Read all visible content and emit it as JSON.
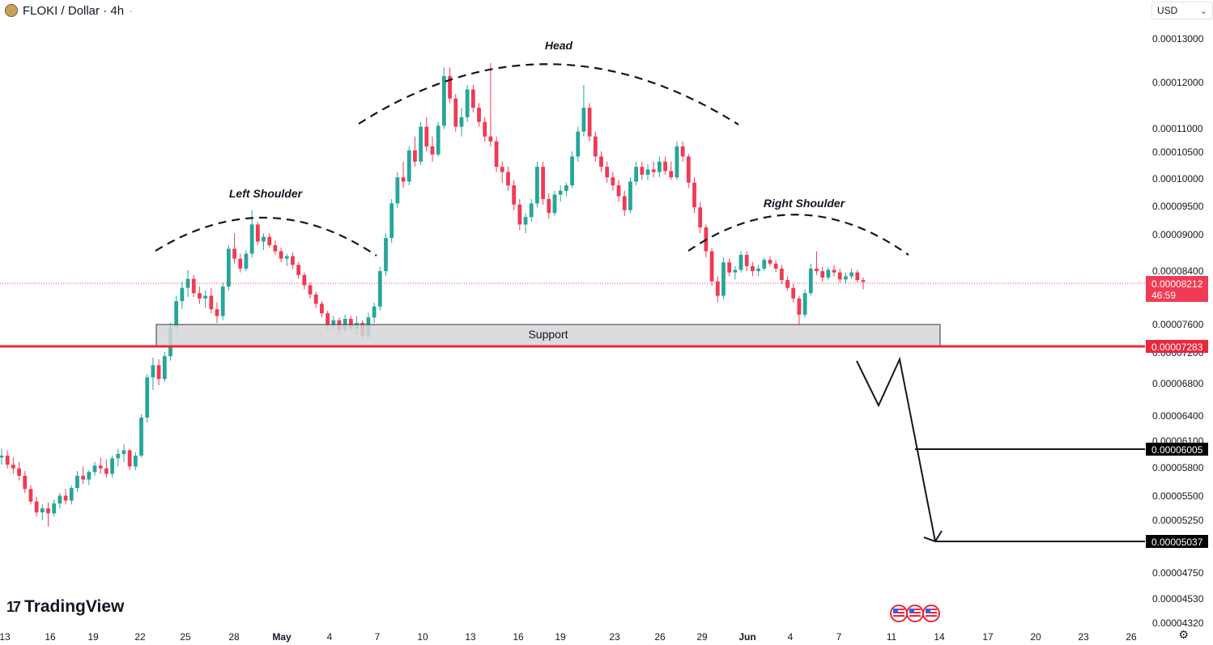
{
  "header": {
    "symbol_title": "FLOKI / Dollar · 4h",
    "dot": "·"
  },
  "currency_select": {
    "value": "USD",
    "chevron": "⌄"
  },
  "logo": {
    "text": "TradingView",
    "mark": "17"
  },
  "colors": {
    "up": "#26a69a",
    "down": "#ef3b55",
    "line_red": "#e8283c",
    "support_fill": "#d6d6d9"
  },
  "chart_data": {
    "type": "candlestick",
    "y_axis": {
      "ticks": [
        "0.00013000",
        "0.00012000",
        "0.00011000",
        "0.00010500",
        "0.00010000",
        "0.00009500",
        "0.00009000",
        "0.00008400",
        "0.00007600",
        "0.00007200",
        "0.00006800",
        "0.00006400",
        "0.00006100",
        "0.00005800",
        "0.00005500",
        "0.00005250",
        "0.00004750",
        "0.00004530",
        "0.00004320"
      ],
      "scale": "log"
    },
    "x_axis": {
      "ticks": [
        "13",
        "16",
        "19",
        "22",
        "25",
        "28",
        "May",
        "4",
        "7",
        "10",
        "13",
        "16",
        "19",
        "23",
        "26",
        "29",
        "Jun",
        "4",
        "7",
        "11",
        "14",
        "17",
        "20",
        "23",
        "26"
      ]
    },
    "price_labels": {
      "current": {
        "price": "0.00008212",
        "countdown": "46:59"
      },
      "support_line": "0.00007283",
      "target_1": "0.00006005",
      "target_2": "0.00005037"
    },
    "annotations": {
      "left_shoulder": "Left Shoulder",
      "head": "Head",
      "right_shoulder": "Right Shoulder",
      "support": "Support"
    },
    "candles": [
      [
        5.9e-05,
        6e-05,
        5.82e-05,
        5.92e-05
      ],
      [
        5.92e-05,
        5.98e-05,
        5.78e-05,
        5.82e-05
      ],
      [
        5.82e-05,
        5.9e-05,
        5.72e-05,
        5.78e-05
      ],
      [
        5.78e-05,
        5.85e-05,
        5.65e-05,
        5.7e-05
      ],
      [
        5.7e-05,
        5.75e-05,
        5.52e-05,
        5.56e-05
      ],
      [
        5.56e-05,
        5.6e-05,
        5.4e-05,
        5.43e-05
      ],
      [
        5.43e-05,
        5.48e-05,
        5.28e-05,
        5.32e-05
      ],
      [
        5.32e-05,
        5.4e-05,
        5.24e-05,
        5.36e-05
      ],
      [
        5.36e-05,
        5.42e-05,
        5.18e-05,
        5.31e-05
      ],
      [
        5.31e-05,
        5.45e-05,
        5.28e-05,
        5.41e-05
      ],
      [
        5.41e-05,
        5.52e-05,
        5.36e-05,
        5.49e-05
      ],
      [
        5.49e-05,
        5.56e-05,
        5.4e-05,
        5.44e-05
      ],
      [
        5.44e-05,
        5.6e-05,
        5.4e-05,
        5.57e-05
      ],
      [
        5.57e-05,
        5.75e-05,
        5.53e-05,
        5.7e-05
      ],
      [
        5.7e-05,
        5.8e-05,
        5.61e-05,
        5.66e-05
      ],
      [
        5.66e-05,
        5.76e-05,
        5.6e-05,
        5.74e-05
      ],
      [
        5.74e-05,
        5.85e-05,
        5.7e-05,
        5.81e-05
      ],
      [
        5.81e-05,
        5.9e-05,
        5.72e-05,
        5.78e-05
      ],
      [
        5.78e-05,
        5.88e-05,
        5.68e-05,
        5.72e-05
      ],
      [
        5.72e-05,
        5.92e-05,
        5.68e-05,
        5.89e-05
      ],
      [
        5.89e-05,
        6e-05,
        5.8e-05,
        5.94e-05
      ],
      [
        5.94e-05,
        6.05e-05,
        5.85e-05,
        5.98e-05
      ],
      [
        5.98e-05,
        6e-05,
        5.76e-05,
        5.8e-05
      ],
      [
        5.8e-05,
        5.96e-05,
        5.76e-05,
        5.92e-05
      ],
      [
        5.92e-05,
        6.4e-05,
        5.9e-05,
        6.36e-05
      ],
      [
        6.36e-05,
        6.9e-05,
        6.3e-05,
        6.86e-05
      ],
      [
        6.86e-05,
        7.12e-05,
        6.7e-05,
        7.02e-05
      ],
      [
        7.02e-05,
        7.1e-05,
        6.76e-05,
        6.84e-05
      ],
      [
        6.84e-05,
        7.2e-05,
        6.8e-05,
        7.14e-05
      ],
      [
        7.14e-05,
        7.6e-05,
        7.08e-05,
        7.54e-05
      ],
      [
        7.54e-05,
        8e-05,
        7.46e-05,
        7.92e-05
      ],
      [
        7.92e-05,
        8.22e-05,
        7.8e-05,
        8.12e-05
      ],
      [
        8.12e-05,
        8.4e-05,
        7.98e-05,
        8.26e-05
      ],
      [
        8.26e-05,
        8.32e-05,
        7.98e-05,
        8.04e-05
      ],
      [
        8.04e-05,
        8.14e-05,
        7.88e-05,
        7.96e-05
      ],
      [
        7.96e-05,
        8.08e-05,
        7.82e-05,
        8e-05
      ],
      [
        8e-05,
        8.12e-05,
        7.74e-05,
        7.8e-05
      ],
      [
        7.8e-05,
        7.9e-05,
        7.6e-05,
        7.7e-05
      ],
      [
        7.7e-05,
        8.2e-05,
        7.64e-05,
        8.14e-05
      ],
      [
        8.14e-05,
        8.8e-05,
        8.08e-05,
        8.74e-05
      ],
      [
        8.74e-05,
        9e-05,
        8.5e-05,
        8.58e-05
      ],
      [
        8.58e-05,
        8.66e-05,
        8.36e-05,
        8.42e-05
      ],
      [
        8.42e-05,
        8.72e-05,
        8.38e-05,
        8.66e-05
      ],
      [
        8.66e-05,
        9.4e-05,
        8.6e-05,
        9.15e-05
      ],
      [
        9.15e-05,
        9.2e-05,
        8.8e-05,
        8.86e-05
      ],
      [
        8.86e-05,
        9e-05,
        8.72e-05,
        8.94e-05
      ],
      [
        8.94e-05,
        9e-05,
        8.75e-05,
        8.8e-05
      ],
      [
        8.8e-05,
        8.88e-05,
        8.64e-05,
        8.7e-05
      ],
      [
        8.7e-05,
        8.76e-05,
        8.52e-05,
        8.58e-05
      ],
      [
        8.58e-05,
        8.66e-05,
        8.46e-05,
        8.62e-05
      ],
      [
        8.62e-05,
        8.68e-05,
        8.42e-05,
        8.48e-05
      ],
      [
        8.48e-05,
        8.52e-05,
        8.26e-05,
        8.32e-05
      ],
      [
        8.32e-05,
        8.36e-05,
        8.1e-05,
        8.16e-05
      ],
      [
        8.16e-05,
        8.2e-05,
        7.96e-05,
        8.02e-05
      ],
      [
        8.02e-05,
        8.06e-05,
        7.82e-05,
        7.88e-05
      ],
      [
        7.88e-05,
        7.92e-05,
        7.68e-05,
        7.74e-05
      ],
      [
        7.74e-05,
        7.78e-05,
        7.5e-05,
        7.56e-05
      ],
      [
        7.56e-05,
        7.7e-05,
        7.48e-05,
        7.64e-05
      ],
      [
        7.64e-05,
        7.68e-05,
        7.44e-05,
        7.5e-05
      ],
      [
        7.5e-05,
        7.72e-05,
        7.46e-05,
        7.66e-05
      ],
      [
        7.66e-05,
        7.7e-05,
        7.48e-05,
        7.52e-05
      ],
      [
        7.52e-05,
        7.7e-05,
        7.42e-05,
        7.6e-05
      ],
      [
        7.6e-05,
        7.64e-05,
        7.36e-05,
        7.42e-05
      ],
      [
        7.42e-05,
        7.75e-05,
        7.38e-05,
        7.68e-05
      ],
      [
        7.68e-05,
        7.9e-05,
        7.6e-05,
        7.84e-05
      ],
      [
        7.84e-05,
        8.45e-05,
        7.78e-05,
        8.38e-05
      ],
      [
        8.38e-05,
        9e-05,
        8.3e-05,
        8.92e-05
      ],
      [
        8.92e-05,
        9.6e-05,
        8.84e-05,
        9.52e-05
      ],
      [
        9.52e-05,
        0.000101,
        9.44e-05,
        0.0001
      ],
      [
        0.0001,
        0.000103,
        9.8e-05,
        9.92e-05
      ],
      [
        9.92e-05,
        0.000106,
        9.85e-05,
        0.0001052
      ],
      [
        0.0001052,
        0.000108,
        0.000102,
        0.000103
      ],
      [
        0.000103,
        0.000111,
        0.0001024,
        0.00011
      ],
      [
        0.00011,
        0.000112,
        0.000105,
        0.000106
      ],
      [
        0.000106,
        0.000108,
        0.000103,
        0.0001044
      ],
      [
        0.0001044,
        0.000111,
        0.000104,
        0.0001102
      ],
      [
        0.0001102,
        0.000123,
        0.0001095,
        0.000121
      ],
      [
        0.000121,
        0.000123,
        0.000115,
        0.000116
      ],
      [
        0.000116,
        0.000117,
        0.000109,
        0.00011
      ],
      [
        0.00011,
        0.000114,
        0.000108,
        0.000112
      ],
      [
        0.000112,
        0.000119,
        0.000111,
        0.000118
      ],
      [
        0.000118,
        0.000119,
        0.000113,
        0.000114
      ],
      [
        0.000114,
        0.000115,
        0.00011,
        0.000111
      ],
      [
        0.000111,
        0.000112,
        0.000107,
        0.000108
      ],
      [
        0.000108,
        0.000124,
        0.000106,
        0.000107
      ],
      [
        0.000107,
        0.000108,
        0.000101,
        0.000102
      ],
      [
        0.000102,
        0.000103,
        9.9e-05,
        0.000101
      ],
      [
        0.000101,
        0.000102,
        9.75e-05,
        9.85e-05
      ],
      [
        9.85e-05,
        9.95e-05,
        9.4e-05,
        9.5e-05
      ],
      [
        9.5e-05,
        9.6e-05,
        9.05e-05,
        9.15e-05
      ],
      [
        9.15e-05,
        9.35e-05,
        9e-05,
        9.28e-05
      ],
      [
        9.28e-05,
        9.6e-05,
        9.2e-05,
        9.52e-05
      ],
      [
        9.52e-05,
        0.000103,
        9.45e-05,
        0.000102
      ],
      [
        0.000102,
        0.000103,
        9.5e-05,
        9.6e-05
      ],
      [
        9.6e-05,
        9.7e-05,
        9.25e-05,
        9.35e-05
      ],
      [
        9.35e-05,
        9.75e-05,
        9.3e-05,
        9.68e-05
      ],
      [
        9.68e-05,
        9.85e-05,
        9.55e-05,
        9.75e-05
      ],
      [
        9.75e-05,
        9.9e-05,
        9.65e-05,
        9.85e-05
      ],
      [
        9.85e-05,
        0.000105,
        9.8e-05,
        0.000104
      ],
      [
        0.000104,
        0.00011,
        0.000103,
        0.000109
      ],
      [
        0.000109,
        0.000119,
        0.000108,
        0.000114
      ],
      [
        0.000114,
        0.000115,
        0.000107,
        0.000108
      ],
      [
        0.000108,
        0.000109,
        0.000103,
        0.000104
      ],
      [
        0.000104,
        0.000105,
        0.000101,
        0.000102
      ],
      [
        0.000102,
        0.000103,
        9.9e-05,
        0.0001
      ],
      [
        0.0001,
        0.000101,
        9.75e-05,
        9.85e-05
      ],
      [
        9.85e-05,
        9.95e-05,
        9.55e-05,
        9.65e-05
      ],
      [
        9.65e-05,
        9.75e-05,
        9.3e-05,
        9.4e-05
      ],
      [
        9.4e-05,
        0.0001,
        9.35e-05,
        9.92e-05
      ],
      [
        9.92e-05,
        0.000103,
        9.85e-05,
        0.000102
      ],
      [
        0.000102,
        0.000103,
        9.95e-05,
        0.0001005
      ],
      [
        0.0001005,
        0.0001025,
        9.95e-05,
        0.0001015
      ],
      [
        0.0001015,
        0.000103,
        0.0001,
        0.000101
      ],
      [
        0.000101,
        0.000104,
        0.0001,
        0.000103
      ],
      [
        0.000103,
        0.000104,
        0.0001005,
        0.0001012
      ],
      [
        0.0001012,
        0.000103,
        9.95e-05,
        0.0001
      ],
      [
        0.0001,
        0.000107,
        9.95e-05,
        0.000106
      ],
      [
        0.000106,
        0.000107,
        0.000103,
        0.000104
      ],
      [
        0.000104,
        0.0001045,
        9.8e-05,
        9.9e-05
      ],
      [
        9.9e-05,
        0.0001,
        9.35e-05,
        9.45e-05
      ],
      [
        9.45e-05,
        9.55e-05,
        9e-05,
        9.1e-05
      ],
      [
        9.1e-05,
        9.15e-05,
        8.6e-05,
        8.7e-05
      ],
      [
        8.7e-05,
        8.75e-05,
        8.15e-05,
        8.22e-05
      ],
      [
        8.22e-05,
        8.3e-05,
        7.9e-05,
        8e-05
      ],
      [
        8e-05,
        8.6e-05,
        7.95e-05,
        8.52e-05
      ],
      [
        8.52e-05,
        8.58e-05,
        8.3e-05,
        8.36e-05
      ],
      [
        8.36e-05,
        8.46e-05,
        8.25e-05,
        8.4e-05
      ],
      [
        8.4e-05,
        8.7e-05,
        8.36e-05,
        8.64e-05
      ],
      [
        8.64e-05,
        8.7e-05,
        8.38e-05,
        8.46e-05
      ],
      [
        8.46e-05,
        8.52e-05,
        8.3e-05,
        8.38e-05
      ],
      [
        8.38e-05,
        8.48e-05,
        8.3e-05,
        8.42e-05
      ],
      [
        8.42e-05,
        8.6e-05,
        8.38e-05,
        8.56e-05
      ],
      [
        8.56e-05,
        8.62e-05,
        8.46e-05,
        8.5e-05
      ],
      [
        8.5e-05,
        8.56e-05,
        8.36e-05,
        8.42e-05
      ],
      [
        8.42e-05,
        8.48e-05,
        8.18e-05,
        8.24e-05
      ],
      [
        8.24e-05,
        8.3e-05,
        8.08e-05,
        8.12e-05
      ],
      [
        8.12e-05,
        8.18e-05,
        7.9e-05,
        7.96e-05
      ],
      [
        7.96e-05,
        8e-05,
        7.58e-05,
        7.72e-05
      ],
      [
        7.72e-05,
        8.1e-05,
        7.68e-05,
        8.04e-05
      ],
      [
        8.04e-05,
        8.5e-05,
        8e-05,
        8.42e-05
      ],
      [
        8.42e-05,
        8.7e-05,
        8.32e-05,
        8.38e-05
      ],
      [
        8.38e-05,
        8.45e-05,
        8.22e-05,
        8.28e-05
      ],
      [
        8.28e-05,
        8.44e-05,
        8.24e-05,
        8.4e-05
      ],
      [
        8.4e-05,
        8.48e-05,
        8.3e-05,
        8.36e-05
      ],
      [
        8.36e-05,
        8.42e-05,
        8.2e-05,
        8.25e-05
      ],
      [
        8.25e-05,
        8.36e-05,
        8.18e-05,
        8.3e-05
      ],
      [
        8.3e-05,
        8.42e-05,
        8.26e-05,
        8.36e-05
      ],
      [
        8.36e-05,
        8.4e-05,
        8.2e-05,
        8.24e-05
      ],
      [
        8.24e-05,
        8.28e-05,
        8.1e-05,
        8.21e-05
      ]
    ]
  }
}
